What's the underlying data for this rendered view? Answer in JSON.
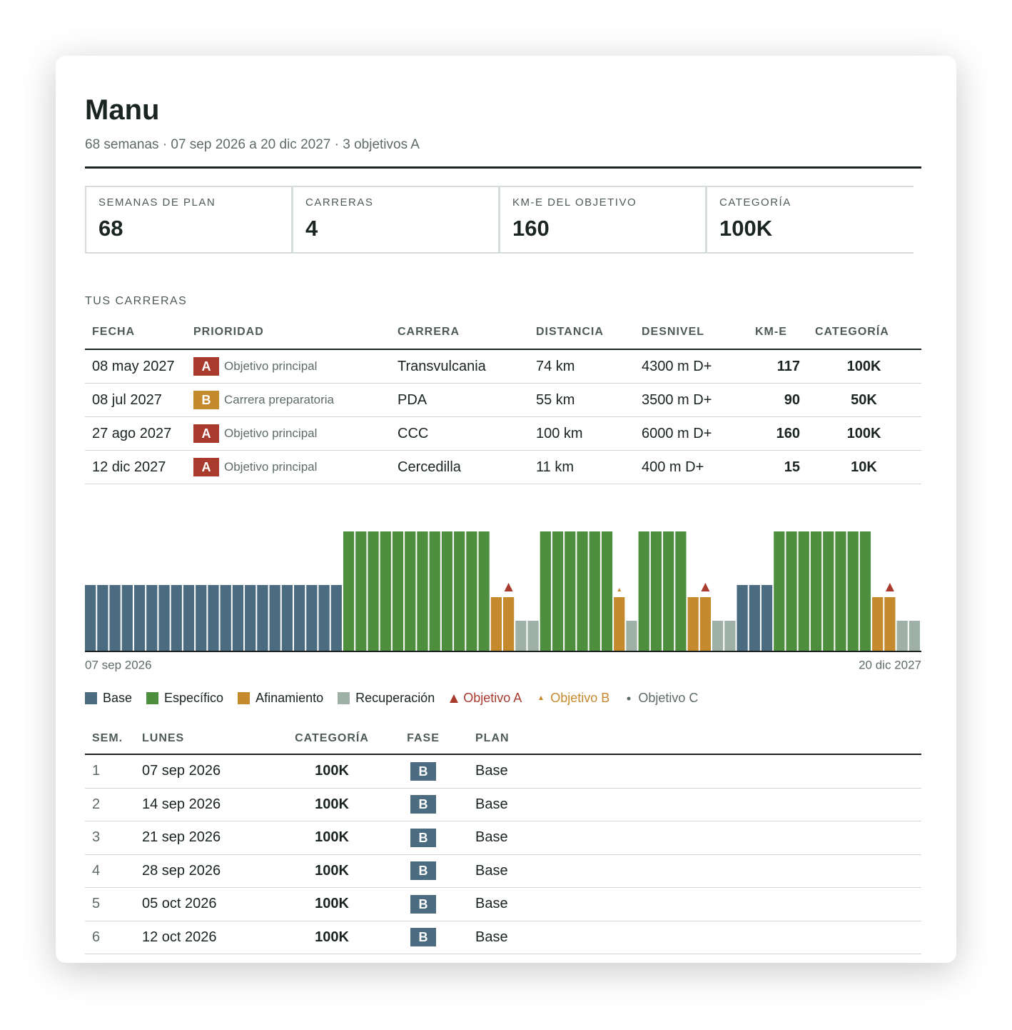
{
  "header": {
    "title": "Manu",
    "subtitle": "68 semanas · 07 sep 2026 a 20 dic 2027 · 3 objetivos A"
  },
  "stats": [
    {
      "label": "SEMANAS DE PLAN",
      "value": 68
    },
    {
      "label": "CARRERAS",
      "value": 4
    },
    {
      "label": "KM-E DEL OBJETIVO",
      "value": 160
    },
    {
      "label": "CATEGORÍA",
      "value": "100K"
    }
  ],
  "races": {
    "title": "TUS CARRERAS",
    "columns": [
      "FECHA",
      "PRIORIDAD",
      "CARRERA",
      "DISTANCIA",
      "DESNIVEL",
      "KM-E",
      "CATEGORÍA"
    ],
    "rows": [
      {
        "date": "08 may 2027",
        "badge": "A",
        "priority": "Objetivo principal",
        "race": "Transvulcania",
        "distance": "74 km",
        "gain": "4300 m D+",
        "kme": 117,
        "category": "100K"
      },
      {
        "date": "08 jul 2027",
        "badge": "B",
        "priority": "Carrera preparatoria",
        "race": "PDA",
        "distance": "55 km",
        "gain": "3500 m D+",
        "kme": 90,
        "category": "50K"
      },
      {
        "date": "27 ago 2027",
        "badge": "A",
        "priority": "Objetivo principal",
        "race": "CCC",
        "distance": "100 km",
        "gain": "6000 m D+",
        "kme": 160,
        "category": "100K"
      },
      {
        "date": "12 dic 2027",
        "badge": "A",
        "priority": "Objetivo principal",
        "race": "Cercedilla",
        "distance": "11 km",
        "gain": "400 m D+",
        "kme": 15,
        "category": "10K"
      }
    ]
  },
  "timeline": {
    "start_label": "07 sep 2026",
    "end_label": "20 dic 2027",
    "legend": [
      {
        "name": "Base",
        "color": "#4a6b80",
        "symbol": "square"
      },
      {
        "name": "Específico",
        "color": "#4e8f3f",
        "symbol": "square"
      },
      {
        "name": "Afinamiento",
        "color": "#c68a2e",
        "symbol": "square"
      },
      {
        "name": "Recuperación",
        "color": "#9fb1a7",
        "symbol": "square"
      },
      {
        "name": "Objetivo A",
        "color": "#a83a2e",
        "symbol": "triangle"
      },
      {
        "name": "Objetivo B",
        "color": "#c68a2e",
        "symbol": "small-triangle"
      },
      {
        "name": "Objetivo C",
        "color": "#5e6b67",
        "symbol": "dot"
      }
    ],
    "weeks": [
      "Base",
      "Base",
      "Base",
      "Base",
      "Base",
      "Base",
      "Base",
      "Base",
      "Base",
      "Base",
      "Base",
      "Base",
      "Base",
      "Base",
      "Base",
      "Base",
      "Base",
      "Base",
      "Base",
      "Base",
      "Base",
      "Específico",
      "Específico",
      "Específico",
      "Específico",
      "Específico",
      "Específico",
      "Específico",
      "Específico",
      "Específico",
      "Específico",
      "Específico",
      "Específico",
      "Afinamiento",
      "Afinamiento",
      "Recuperación",
      "Recuperación",
      "Específico",
      "Específico",
      "Específico",
      "Específico",
      "Específico",
      "Específico",
      "Afinamiento",
      "Recuperación",
      "Específico",
      "Específico",
      "Específico",
      "Específico",
      "Afinamiento",
      "Afinamiento",
      "Recuperación",
      "Recuperación",
      "Base",
      "Base",
      "Base",
      "Específico",
      "Específico",
      "Específico",
      "Específico",
      "Específico",
      "Específico",
      "Específico",
      "Específico",
      "Afinamiento",
      "Afinamiento",
      "Recuperación",
      "Recuperación"
    ],
    "goals": [
      {
        "week": 35,
        "goal": "Objetivo A"
      },
      {
        "week": 44,
        "goal": "Objetivo B"
      },
      {
        "week": 51,
        "goal": "Objetivo A"
      },
      {
        "week": 66,
        "goal": "Objetivo A"
      }
    ]
  },
  "weeks_table": {
    "columns": [
      "SEM.",
      "LUNES",
      "CATEGORÍA",
      "FASE",
      "PLAN"
    ],
    "rows": [
      {
        "sem": 1,
        "monday": "07 sep 2026",
        "category": "100K",
        "badge": "B",
        "plan": "Base"
      },
      {
        "sem": 2,
        "monday": "14 sep 2026",
        "category": "100K",
        "badge": "B",
        "plan": "Base"
      },
      {
        "sem": 3,
        "monday": "21 sep 2026",
        "category": "100K",
        "badge": "B",
        "plan": "Base"
      },
      {
        "sem": 4,
        "monday": "28 sep 2026",
        "category": "100K",
        "badge": "B",
        "plan": "Base"
      },
      {
        "sem": 5,
        "monday": "05 oct 2026",
        "category": "100K",
        "badge": "B",
        "plan": "Base"
      },
      {
        "sem": 6,
        "monday": "12 oct 2026",
        "category": "100K",
        "badge": "B",
        "plan": "Base"
      }
    ]
  }
}
